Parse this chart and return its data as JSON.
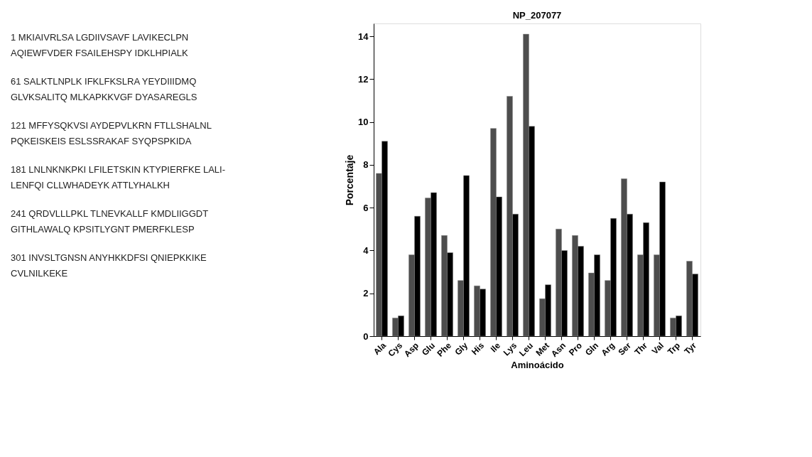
{
  "chart_data": {
    "type": "bar",
    "title": "NP_207077",
    "xlabel": "Aminoácido",
    "ylabel": "Porcentaje",
    "categories": [
      "Ala",
      "Cys",
      "Asp",
      "Glu",
      "Phe",
      "Gly",
      "His",
      "Ile",
      "Lys",
      "Leu",
      "Met",
      "Asn",
      "Pro",
      "Gln",
      "Arg",
      "Ser",
      "Thr",
      "Val",
      "Trp",
      "Tyr"
    ],
    "series": [
      {
        "color": "#4d4d4d",
        "values": [
          7.6,
          0.85,
          3.8,
          6.45,
          4.7,
          2.6,
          2.35,
          9.7,
          11.2,
          14.1,
          1.75,
          5.0,
          4.7,
          2.95,
          2.6,
          7.35,
          3.8,
          3.8,
          0.85,
          3.5
        ]
      },
      {
        "color": "#000000",
        "values": [
          9.1,
          0.95,
          5.6,
          6.7,
          3.9,
          7.5,
          2.2,
          6.5,
          5.7,
          9.8,
          2.4,
          4.0,
          4.2,
          3.8,
          5.5,
          5.7,
          5.3,
          7.2,
          0.95,
          2.9
        ]
      }
    ],
    "ylim": [
      0,
      14.6
    ],
    "yticks": [
      0,
      2,
      4,
      6,
      8,
      10,
      12,
      14
    ],
    "grid": false,
    "annotations": [
      "1 MKIAIVRLSA LGDIIVSAVF LAVIKECLPN",
      "AQIEWFVDER FSAILEHSPY IDKLHPIALK",
      "61 SALKTLNPLK IFKLFKSLRA YEYDIIIDMQ",
      "GLVKSALITQ MLKAPKKVGF DYASAREGLS",
      "121 MFFYSQKVSI AYDEPVLKRN FTLLSHALNL",
      "PQKEISKEIS ESLSSRAKAF SYQPSPKIDA",
      "181 LNLNKNKPKI LFILETSKIN KTYPIERFKE LALI-",
      "LENFQI CLLWHADEYK ATTLYHALKH",
      "241 QRDVLLLPKL TLNEVKALLF KMDLIIGGDT",
      "GITHLAWALQ KPSITLYGNT PMERFKLESP",
      "301 INVSLTGNSN ANYHKKDFSI QNIEPKKIKE",
      "CVLNILKEKE"
    ]
  }
}
